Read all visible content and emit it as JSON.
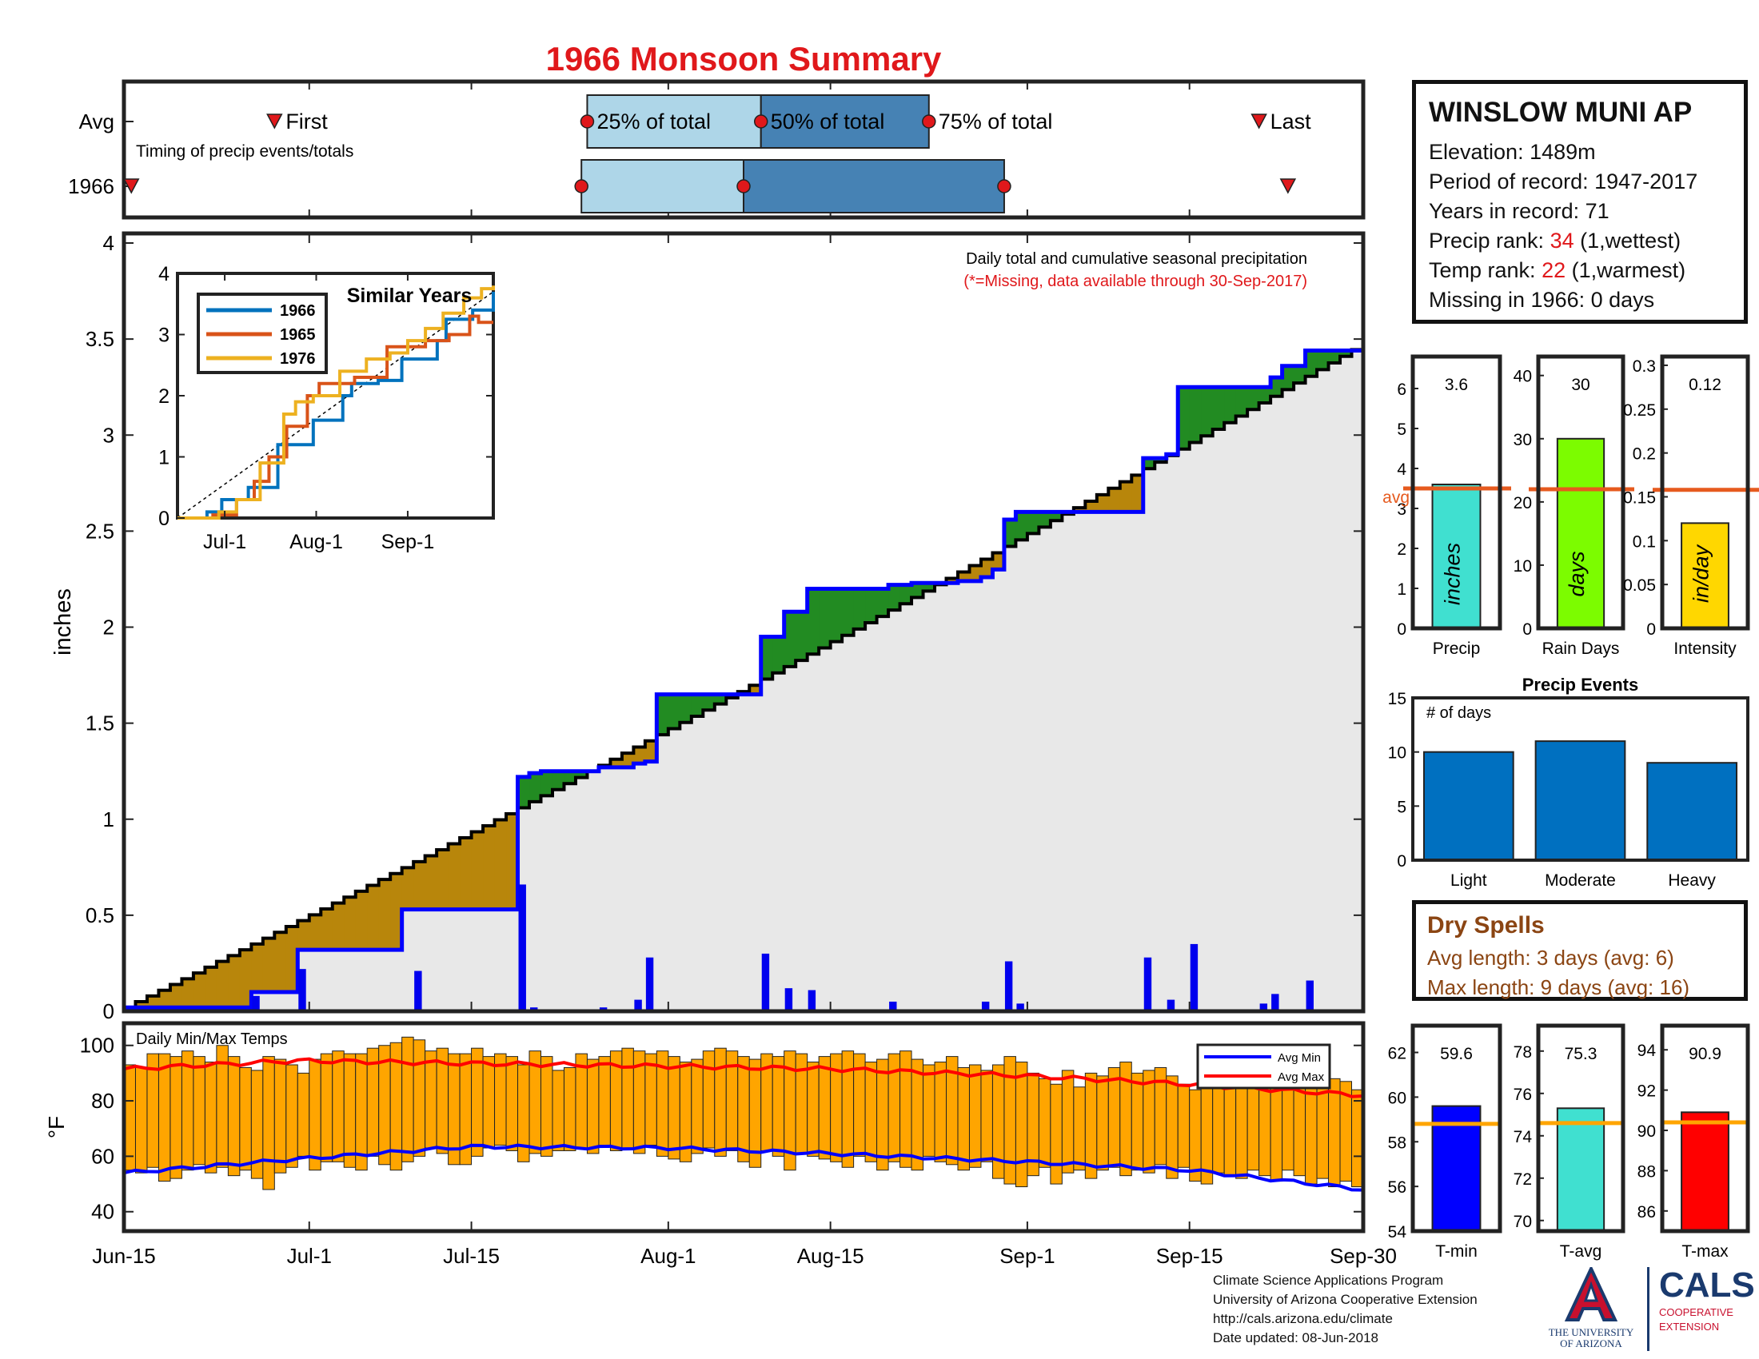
{
  "title": "1966 Monsoon Summary",
  "colors": {
    "title": "#e0181b",
    "light_blue": "#aed6e8",
    "steel_blue": "#4682b4",
    "green": "#228b22",
    "brown": "#b8860b",
    "grey_fill": "#e8e8e8",
    "blue_line": "#0000ff",
    "black_line": "#000000",
    "orange": "#ffa500",
    "avg_line": "#e65a1e",
    "red": "#ff0000",
    "turquoise": "#40e0d0",
    "lime": "#7cfc00",
    "gold": "#ffd700",
    "bar_blue": "#0070c0"
  },
  "timing": {
    "rows": [
      "Avg",
      "1966"
    ],
    "caption": "Timing of precip events/totals",
    "labels": {
      "first": "First",
      "q25": "25% of total",
      "q50": "50% of total",
      "q75": "75% of total",
      "last": "Last"
    },
    "avg": {
      "first": 13,
      "q25": 40,
      "q50": 55,
      "q75": 69.5,
      "last": 98
    },
    "year": {
      "first": 0.5,
      "q25": 39.5,
      "q50": 53.5,
      "q75": 76,
      "last": 100.5
    }
  },
  "station": {
    "name": "WINSLOW MUNI AP",
    "elevation_label": "Elevation: 1489m",
    "period_label": "Period of record: 1947-2017",
    "years_label": "Years in record: 71",
    "precip_rank_prefix": "Precip rank: ",
    "precip_rank": "34",
    "precip_rank_suffix": " (1,wettest)",
    "temp_rank_prefix": "Temp rank: ",
    "temp_rank": "22",
    "temp_rank_suffix": " (1,warmest)",
    "missing_label": "Missing in 1966: 0 days"
  },
  "chart_data": [
    {
      "id": "cumulative_precip",
      "type": "area",
      "annotation1": "Daily total and cumulative seasonal precipitation",
      "annotation2": "(*=Missing, data available through 30-Sep-2017)",
      "ylabel": "inches",
      "ylim": [
        0,
        4.05
      ],
      "yticks": [
        0,
        0.5,
        1,
        1.5,
        2,
        2.5,
        3,
        3.5,
        4
      ],
      "xlim": [
        0,
        107
      ],
      "xticks": [
        {
          "day": 0,
          "label": "Jun-15"
        },
        {
          "day": 16,
          "label": "Jul-1"
        },
        {
          "day": 30,
          "label": "Jul-15"
        },
        {
          "day": 47,
          "label": "Aug-1"
        },
        {
          "day": 61,
          "label": "Aug-15"
        },
        {
          "day": 78,
          "label": "Sep-1"
        },
        {
          "day": 92,
          "label": "Sep-15"
        },
        {
          "day": 107,
          "label": "Sep-30"
        }
      ],
      "series_1966_steps": [
        {
          "day": 0,
          "value": 0.02
        },
        {
          "day": 11,
          "value": 0.1
        },
        {
          "day": 15,
          "value": 0.32
        },
        {
          "day": 24,
          "value": 0.53
        },
        {
          "day": 34,
          "value": 1.22
        },
        {
          "day": 35,
          "value": 1.24
        },
        {
          "day": 36,
          "value": 1.25
        },
        {
          "day": 41,
          "value": 1.27
        },
        {
          "day": 44,
          "value": 1.29
        },
        {
          "day": 45,
          "value": 1.3
        },
        {
          "day": 46,
          "value": 1.65
        },
        {
          "day": 55,
          "value": 1.95
        },
        {
          "day": 57,
          "value": 2.08
        },
        {
          "day": 59,
          "value": 2.2
        },
        {
          "day": 66,
          "value": 2.22
        },
        {
          "day": 68,
          "value": 2.23
        },
        {
          "day": 72,
          "value": 2.24
        },
        {
          "day": 74,
          "value": 2.26
        },
        {
          "day": 75,
          "value": 2.3
        },
        {
          "day": 76,
          "value": 2.56
        },
        {
          "day": 77,
          "value": 2.6
        },
        {
          "day": 88,
          "value": 2.88
        },
        {
          "day": 90,
          "value": 2.9
        },
        {
          "day": 91,
          "value": 3.25
        },
        {
          "day": 99,
          "value": 3.3
        },
        {
          "day": 100,
          "value": 3.36
        },
        {
          "day": 102,
          "value": 3.44
        },
        {
          "day": 107,
          "value": 3.6
        }
      ],
      "avg_start": 0.02,
      "avg_end": 3.48,
      "daily_bars": [
        {
          "day": 11,
          "value": 0.08
        },
        {
          "day": 15,
          "value": 0.22
        },
        {
          "day": 25,
          "value": 0.21
        },
        {
          "day": 34,
          "value": 0.66
        },
        {
          "day": 35,
          "value": 0.02
        },
        {
          "day": 36,
          "value": 0.01
        },
        {
          "day": 41,
          "value": 0.02
        },
        {
          "day": 42,
          "value": 0.01
        },
        {
          "day": 44,
          "value": 0.06
        },
        {
          "day": 45,
          "value": 0.28
        },
        {
          "day": 55,
          "value": 0.3
        },
        {
          "day": 57,
          "value": 0.12
        },
        {
          "day": 59,
          "value": 0.11
        },
        {
          "day": 66,
          "value": 0.05
        },
        {
          "day": 73,
          "value": 0.01
        },
        {
          "day": 74,
          "value": 0.05
        },
        {
          "day": 76,
          "value": 0.26
        },
        {
          "day": 77,
          "value": 0.04
        },
        {
          "day": 88,
          "value": 0.28
        },
        {
          "day": 90,
          "value": 0.06
        },
        {
          "day": 92,
          "value": 0.35
        },
        {
          "day": 98,
          "value": 0.04
        },
        {
          "day": 99,
          "value": 0.09
        },
        {
          "day": 102,
          "value": 0.16
        }
      ]
    },
    {
      "id": "similar_years",
      "type": "line",
      "title": "Similar Years",
      "ylim": [
        0,
        4
      ],
      "yticks": [
        0,
        1,
        2,
        3,
        4
      ],
      "xticks": [
        {
          "day": 16,
          "label": "Jul-1"
        },
        {
          "day": 47,
          "label": "Aug-1"
        },
        {
          "day": 78,
          "label": "Sep-1"
        }
      ],
      "series": [
        {
          "name": "1966",
          "color": "#0072bd",
          "values": [
            [
              0,
              0
            ],
            [
              10,
              0.1
            ],
            [
              15,
              0.3
            ],
            [
              24,
              0.5
            ],
            [
              34,
              1.2
            ],
            [
              46,
              1.6
            ],
            [
              56,
              2
            ],
            [
              59,
              2.2
            ],
            [
              68,
              2.25
            ],
            [
              76,
              2.6
            ],
            [
              88,
              2.9
            ],
            [
              91,
              3.25
            ],
            [
              100,
              3.4
            ],
            [
              107,
              3.7
            ]
          ]
        },
        {
          "name": "1965",
          "color": "#d95319",
          "values": [
            [
              0,
              0
            ],
            [
              12,
              0.05
            ],
            [
              20,
              0.3
            ],
            [
              26,
              0.6
            ],
            [
              31,
              1.0
            ],
            [
              37,
              1.5
            ],
            [
              44,
              2.0
            ],
            [
              48,
              2.2
            ],
            [
              60,
              2.3
            ],
            [
              71,
              2.8
            ],
            [
              84,
              2.9
            ],
            [
              92,
              3.0
            ],
            [
              99,
              3.3
            ],
            [
              102,
              3.2
            ],
            [
              107,
              3.2
            ]
          ]
        },
        {
          "name": "1976",
          "color": "#edb120",
          "values": [
            [
              0,
              0
            ],
            [
              14,
              0.1
            ],
            [
              20,
              0.3
            ],
            [
              28,
              0.9
            ],
            [
              36,
              1.7
            ],
            [
              40,
              1.9
            ],
            [
              46,
              2.0
            ],
            [
              55,
              2.4
            ],
            [
              64,
              2.6
            ],
            [
              72,
              2.7
            ],
            [
              78,
              2.9
            ],
            [
              84,
              3.1
            ],
            [
              90,
              3.35
            ],
            [
              97,
              3.6
            ],
            [
              103,
              3.75
            ],
            [
              107,
              3.8
            ]
          ]
        }
      ]
    },
    {
      "id": "summary_precip",
      "type": "bar",
      "category": "Precip",
      "value": 3.6,
      "value_label": "3.6",
      "avg": 3.5,
      "avg_label": "avg",
      "unit_label": "inches",
      "ylim": [
        0,
        6.8
      ],
      "yticks": [
        0,
        1,
        2,
        3,
        4,
        5,
        6
      ]
    },
    {
      "id": "summary_raindays",
      "type": "bar",
      "category": "Rain Days",
      "value": 30,
      "value_label": "30",
      "avg": 22,
      "unit_label": "days",
      "ylim": [
        0,
        43
      ],
      "yticks": [
        0,
        10,
        20,
        30,
        40
      ]
    },
    {
      "id": "summary_intensity",
      "type": "bar",
      "category": "Intensity",
      "value": 0.12,
      "value_label": "0.12",
      "avg": 0.158,
      "unit_label": "in/day",
      "ylim": [
        0,
        0.31
      ],
      "yticks": [
        0,
        0.05,
        0.1,
        0.15,
        0.2,
        0.25,
        0.3
      ],
      "ytick_labels": [
        "0",
        "0.05",
        "0.1",
        "0.15",
        "0.2",
        "0.25",
        "0.3"
      ]
    },
    {
      "id": "precip_events",
      "type": "bar",
      "title": "Precip Events",
      "ylabel": "# of days",
      "categories": [
        "Light",
        "Moderate",
        "Heavy"
      ],
      "values": [
        10,
        11,
        9
      ],
      "ylim": [
        0,
        15
      ],
      "yticks": [
        0,
        5,
        10,
        15
      ]
    },
    {
      "id": "daily_temps",
      "type": "bar",
      "title": "Daily Min/Max Temps",
      "ylabel": "°F",
      "ylim": [
        33,
        108
      ],
      "yticks": [
        40,
        60,
        80,
        100
      ],
      "legend": [
        "Avg Min",
        "Avg Max"
      ],
      "legend_position": "top-right",
      "tmax": [
        93,
        92,
        97,
        97,
        96,
        98,
        96,
        94,
        100,
        96,
        92,
        91,
        96,
        95,
        93,
        90,
        95,
        97,
        98,
        97,
        97,
        99,
        100,
        101,
        103,
        102,
        98,
        99,
        97,
        97,
        99,
        96,
        97,
        96,
        93,
        98,
        96,
        91,
        92,
        97,
        95,
        96,
        98,
        99,
        98,
        97,
        98,
        96,
        94,
        95,
        98,
        99,
        98,
        96,
        95,
        97,
        96,
        98,
        97,
        94,
        96,
        97,
        98,
        97,
        94,
        95,
        97,
        98,
        95,
        93,
        94,
        96,
        92,
        93,
        91,
        93,
        96,
        94,
        90,
        88,
        86,
        91,
        85,
        90,
        89,
        92,
        94,
        90,
        91,
        92,
        89,
        86,
        84,
        88,
        87,
        90,
        88,
        85,
        91,
        86,
        90,
        91,
        86,
        89,
        88,
        87,
        84
      ],
      "tmin": [
        55,
        54,
        56,
        51,
        52,
        55,
        57,
        54,
        56,
        53,
        55,
        52,
        48,
        54,
        56,
        60,
        55,
        58,
        58,
        56,
        55,
        60,
        57,
        55,
        58,
        60,
        63,
        61,
        57,
        57,
        60,
        63,
        64,
        62,
        58,
        61,
        60,
        62,
        62,
        63,
        61,
        64,
        62,
        63,
        61,
        64,
        60,
        59,
        58,
        61,
        63,
        60,
        62,
        58,
        56,
        62,
        60,
        55,
        61,
        60,
        59,
        58,
        56,
        60,
        58,
        55,
        58,
        56,
        55,
        60,
        58,
        57,
        55,
        56,
        58,
        52,
        50,
        49,
        53,
        56,
        50,
        54,
        55,
        52,
        55,
        56,
        53,
        55,
        54,
        57,
        52,
        56,
        51,
        50,
        54,
        53,
        52,
        55,
        53,
        51,
        55,
        53,
        50,
        52,
        49,
        51,
        49
      ],
      "avg_max": [
        [
          0,
          91.5
        ],
        [
          15,
          94.5
        ],
        [
          30,
          93.5
        ],
        [
          47,
          92.5
        ],
        [
          61,
          91.5
        ],
        [
          78,
          89
        ],
        [
          92,
          86
        ],
        [
          107,
          82
        ]
      ],
      "avg_min": [
        [
          0,
          54
        ],
        [
          15,
          59
        ],
        [
          30,
          63.5
        ],
        [
          47,
          63
        ],
        [
          61,
          61
        ],
        [
          78,
          58
        ],
        [
          92,
          55
        ],
        [
          107,
          48
        ]
      ]
    },
    {
      "id": "summary_tmin",
      "type": "bar",
      "category": "T-min",
      "value": 59.6,
      "value_label": "59.6",
      "avg": 58.8,
      "ylim": [
        54,
        63.2
      ],
      "yticks": [
        54,
        56,
        58,
        60,
        62
      ]
    },
    {
      "id": "summary_tavg",
      "type": "bar",
      "category": "T-avg",
      "value": 75.3,
      "value_label": "75.3",
      "avg": 74.6,
      "ylim": [
        69.5,
        79.2
      ],
      "yticks": [
        70,
        72,
        74,
        76,
        78
      ]
    },
    {
      "id": "summary_tmax",
      "type": "bar",
      "category": "T-max",
      "value": 90.9,
      "value_label": "90.9",
      "avg": 90.4,
      "ylim": [
        85,
        95.2
      ],
      "yticks": [
        86,
        88,
        90,
        92,
        94
      ]
    }
  ],
  "dry_spells": {
    "title": "Dry Spells",
    "avg_length": "Avg length: 3 days (avg: 6)",
    "max_length": "Max length: 9 days (avg: 16)"
  },
  "footer": {
    "line1": "Climate Science Applications Program",
    "line2": "University of Arizona Cooperative Extension",
    "line3": "http://cals.arizona.edu/climate",
    "line4": " Date updated: 08-Jun-2018"
  },
  "logos": {
    "ua_text1": "THE UNIVERSITY",
    "ua_text2": "OF ARIZONA",
    "cals": "CALS",
    "cals_sub1": "COOPERATIVE",
    "cals_sub2": "EXTENSION"
  }
}
